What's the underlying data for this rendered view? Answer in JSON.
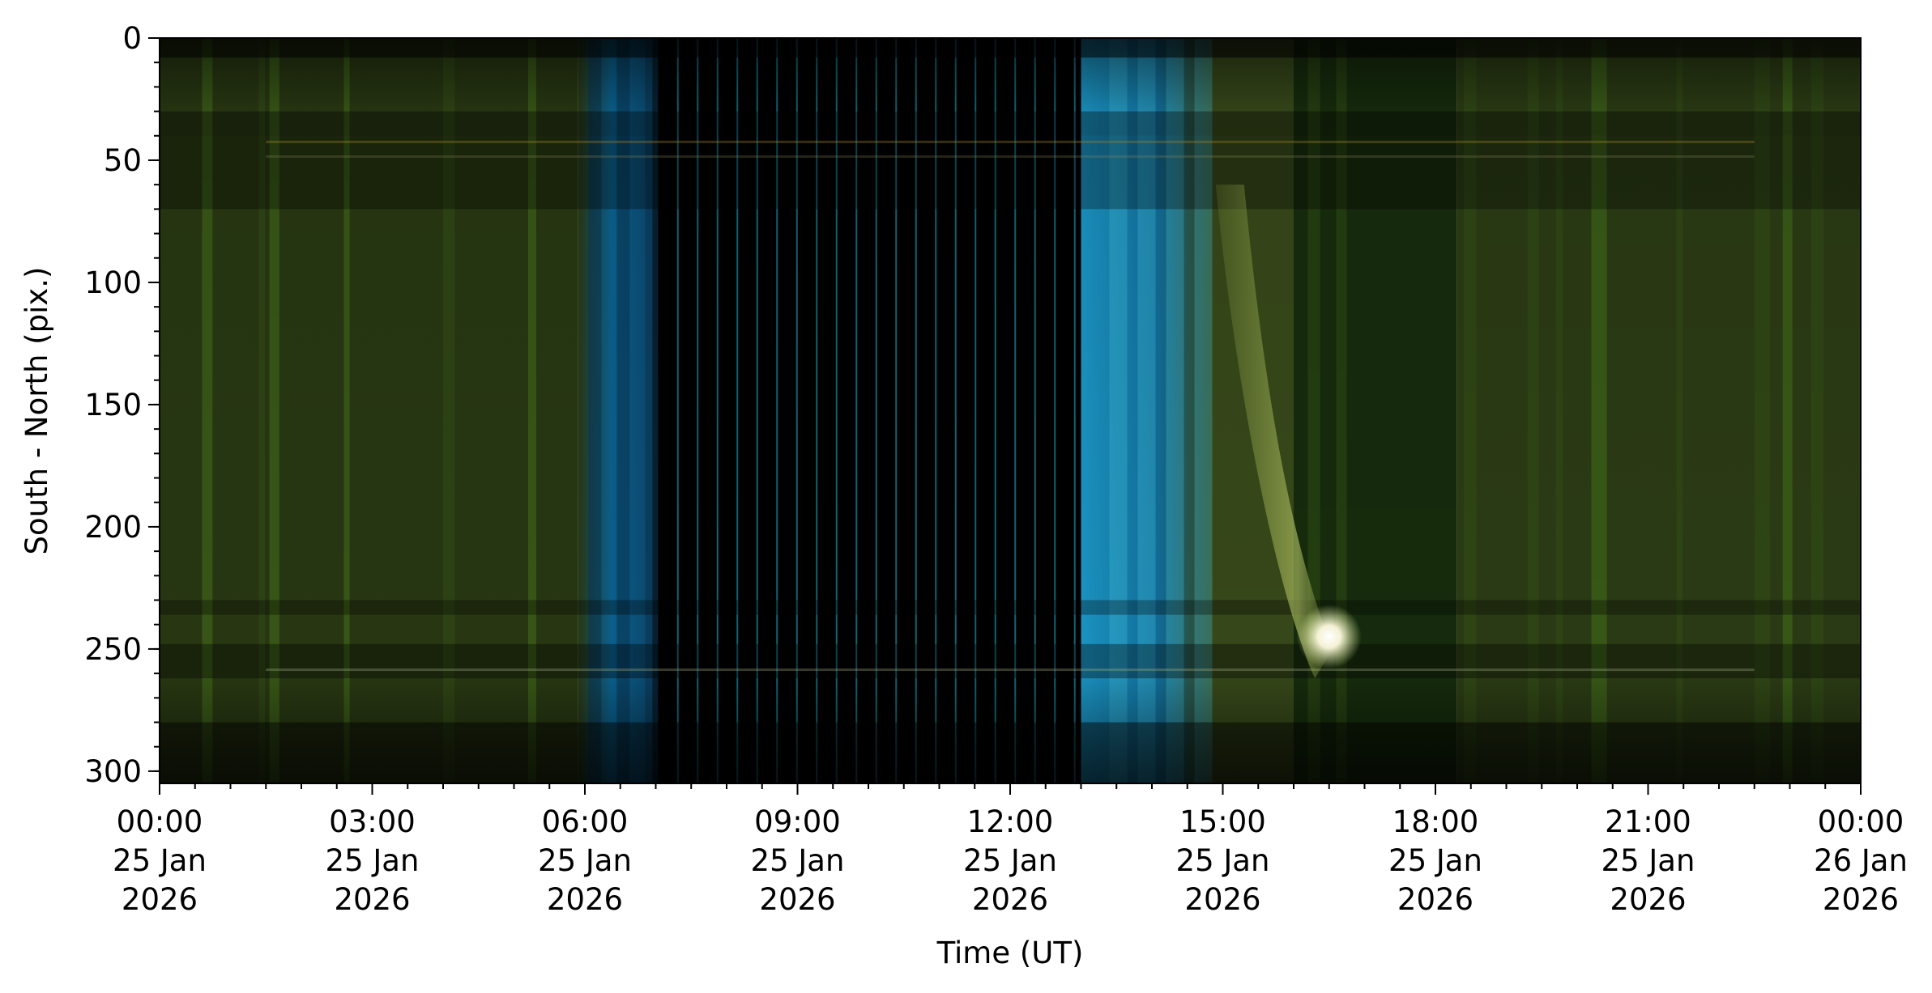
{
  "chart_data": {
    "type": "heatmap",
    "title": "",
    "xlabel": "Time (UT)",
    "ylabel": "South - North (pix.)",
    "x_unit": "hours",
    "xlim": [
      0,
      24
    ],
    "ylim": [
      305,
      0
    ],
    "y_inverted": true,
    "grid": false,
    "x_ticks": [
      {
        "value": 0,
        "lines": [
          "00:00",
          "25 Jan",
          "2026"
        ]
      },
      {
        "value": 3,
        "lines": [
          "03:00",
          "25 Jan",
          "2026"
        ]
      },
      {
        "value": 6,
        "lines": [
          "06:00",
          "25 Jan",
          "2026"
        ]
      },
      {
        "value": 9,
        "lines": [
          "09:00",
          "25 Jan",
          "2026"
        ]
      },
      {
        "value": 12,
        "lines": [
          "12:00",
          "25 Jan",
          "2026"
        ]
      },
      {
        "value": 15,
        "lines": [
          "15:00",
          "25 Jan",
          "2026"
        ]
      },
      {
        "value": 18,
        "lines": [
          "18:00",
          "25 Jan",
          "2026"
        ]
      },
      {
        "value": 21,
        "lines": [
          "21:00",
          "25 Jan",
          "2026"
        ]
      },
      {
        "value": 24,
        "lines": [
          "00:00",
          "26 Jan",
          "2026"
        ]
      }
    ],
    "y_ticks": [
      {
        "value": 0,
        "label": "0"
      },
      {
        "value": 50,
        "label": "50"
      },
      {
        "value": 100,
        "label": "100"
      },
      {
        "value": 150,
        "label": "150"
      },
      {
        "value": 200,
        "label": "200"
      },
      {
        "value": 250,
        "label": "250"
      },
      {
        "value": 300,
        "label": "300"
      }
    ],
    "x_minor_step": 0.5,
    "y_minor_step": 10,
    "colors": {
      "night_green": "#2a3a12",
      "twilight_blue": "#0a6fa0",
      "twilight_cyan": "#2ec4ea",
      "dark": "#000000",
      "bright_spot": "#fffbe8"
    },
    "regions": [
      {
        "x0": 0,
        "x1": 5.9,
        "color": "#2c3d14"
      },
      {
        "x0": 5.9,
        "x1": 6.95,
        "color": "#0c5c88"
      },
      {
        "x0": 6.95,
        "x1": 13.0,
        "color": "#000000"
      },
      {
        "x0": 13.0,
        "x1": 14.8,
        "color": "#1585b8"
      },
      {
        "x0": 14.8,
        "x1": 16.0,
        "color": "#3c4f1c"
      },
      {
        "x0": 16.0,
        "x1": 18.3,
        "color": "#18300e"
      },
      {
        "x0": 18.3,
        "x1": 24.0,
        "color": "#2f4116"
      }
    ],
    "bright_spot": {
      "x": 16.5,
      "y": 245
    }
  }
}
